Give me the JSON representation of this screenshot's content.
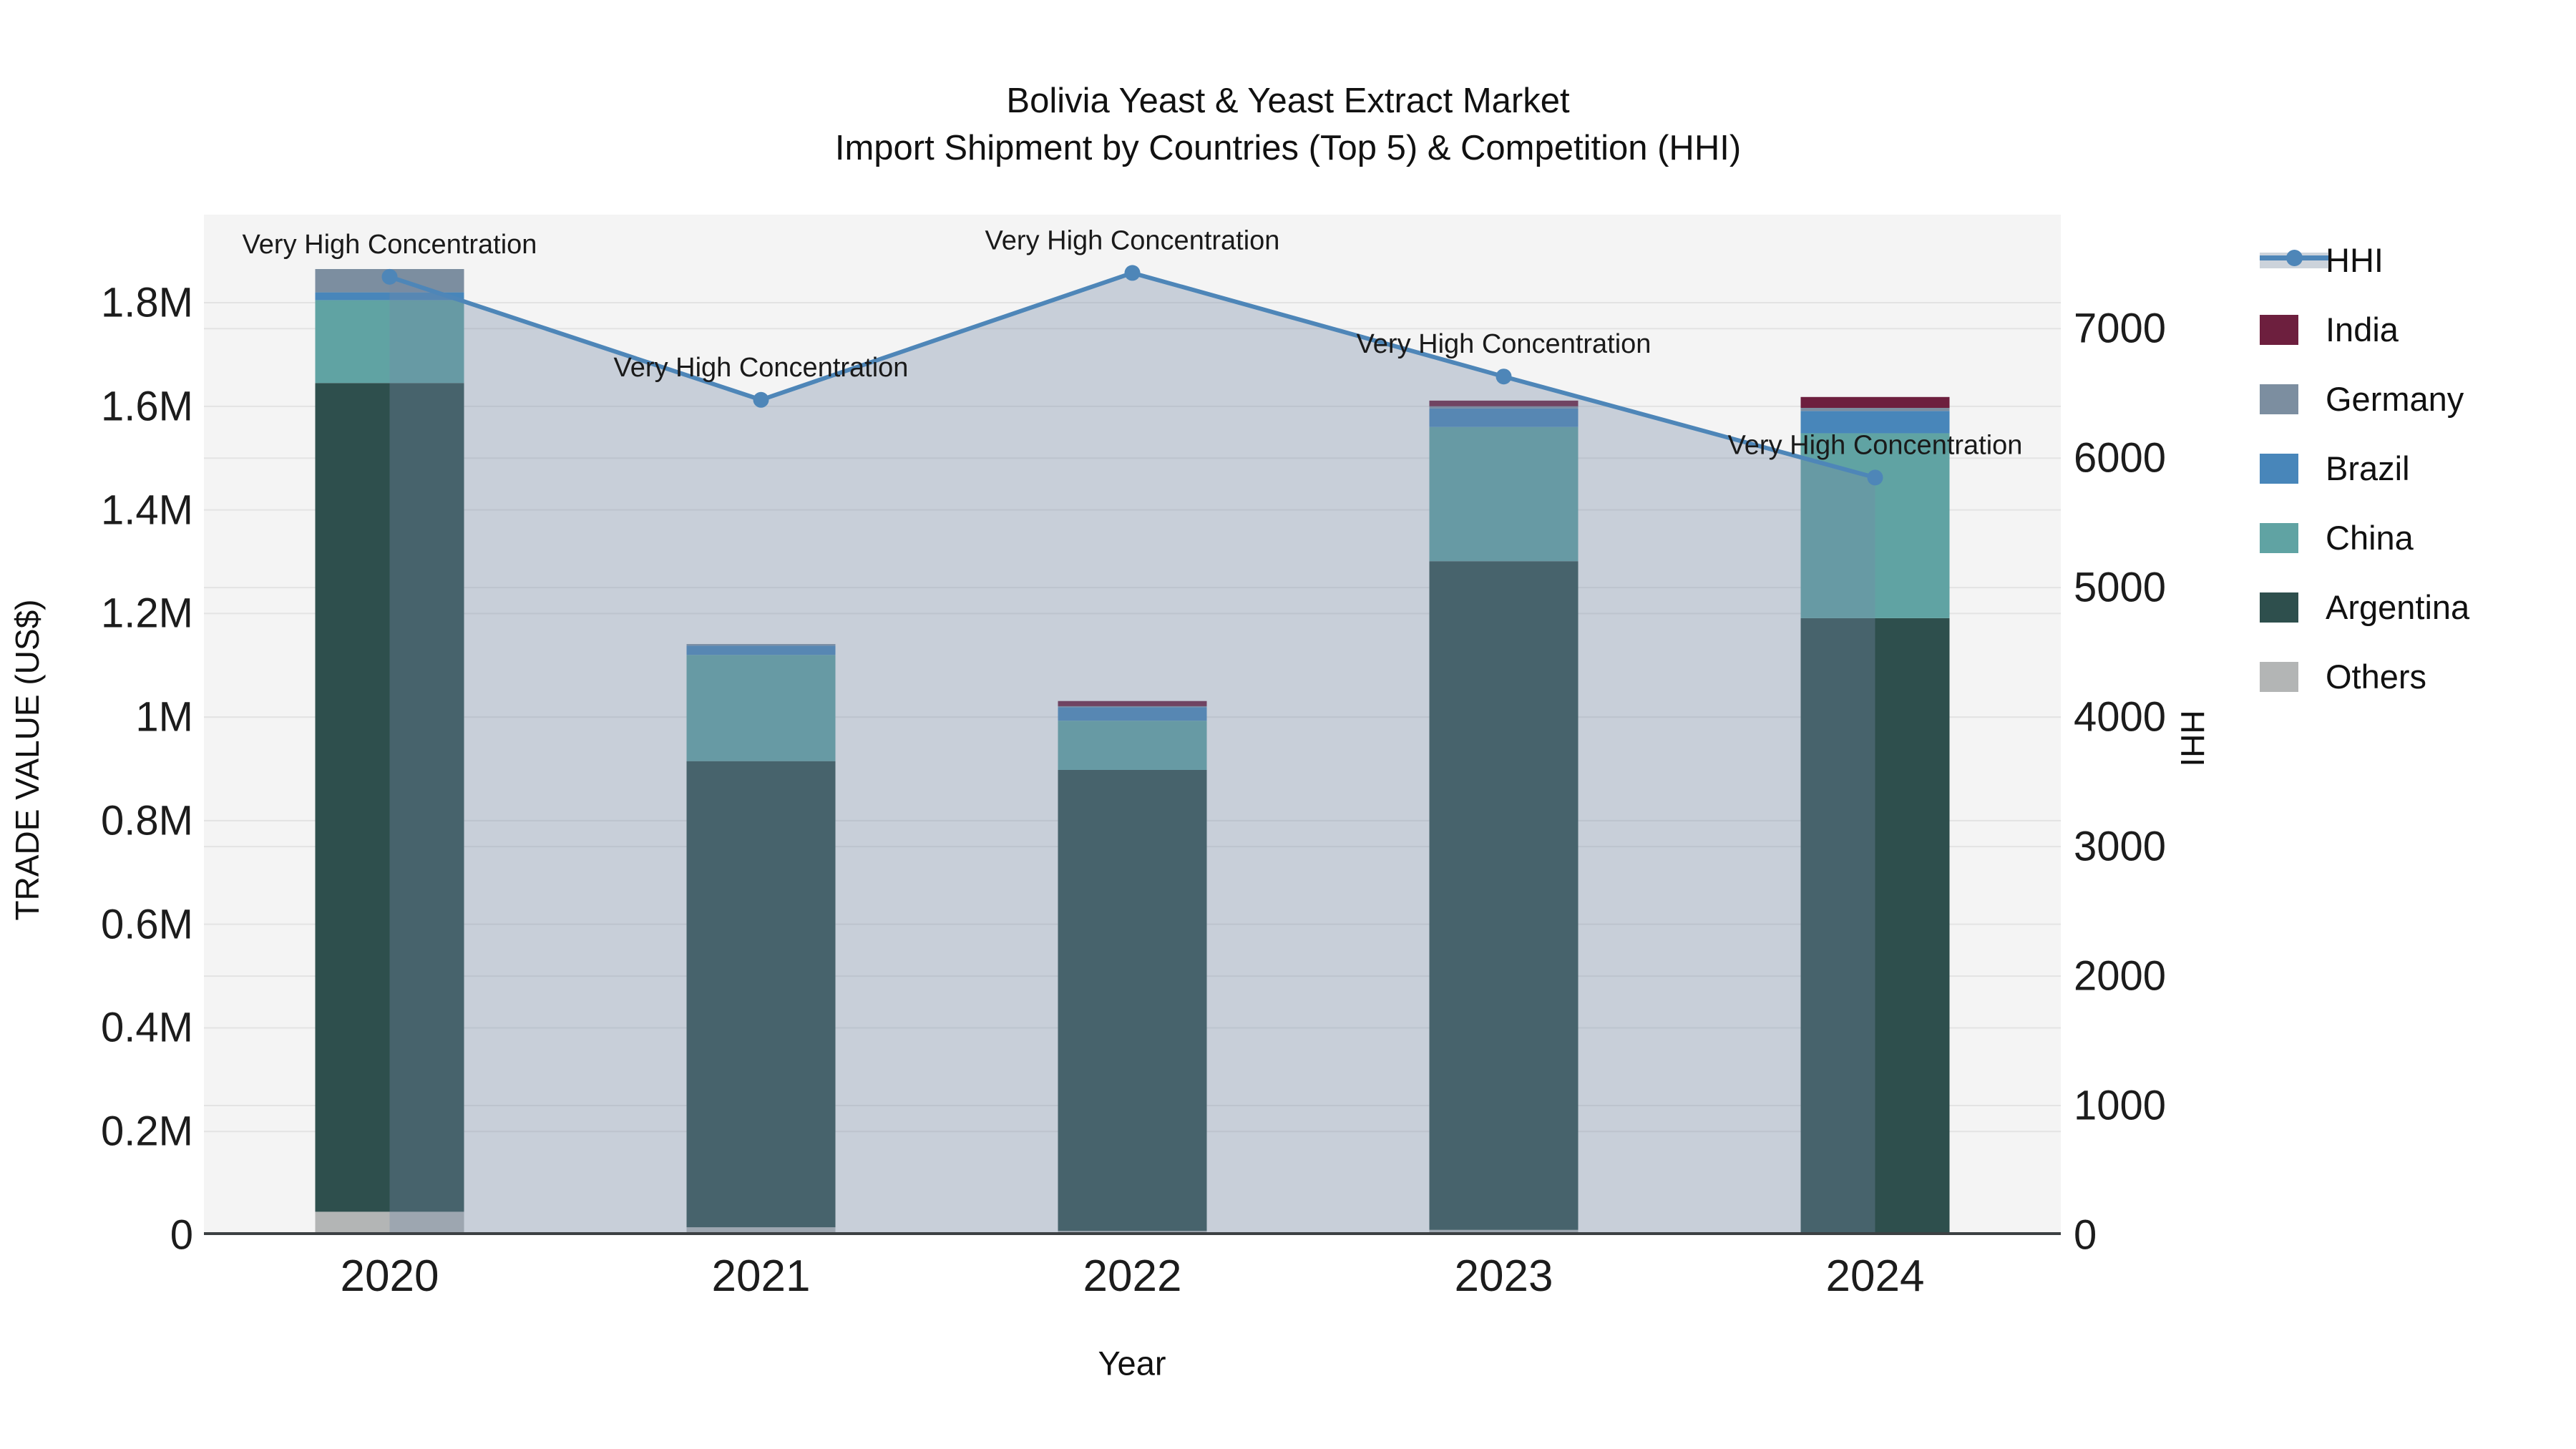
{
  "title": {
    "line1": "Bolivia Yeast & Yeast Extract Market",
    "line2": "Import Shipment by Countries (Top 5) & Competition (HHI)"
  },
  "axes": {
    "x_label": "Year",
    "y_left_label": "TRADE VALUE (US$)",
    "y_right_label": "HHI"
  },
  "legend": {
    "items": [
      {
        "label": "HHI",
        "type": "line",
        "color": "#4e86b8"
      },
      {
        "label": "India",
        "type": "swatch",
        "color": "#6d1f3e"
      },
      {
        "label": "Germany",
        "type": "swatch",
        "color": "#7c8ea0"
      },
      {
        "label": "Brazil",
        "type": "swatch",
        "color": "#4886ba"
      },
      {
        "label": "China",
        "type": "swatch",
        "color": "#60a3a3"
      },
      {
        "label": "Argentina",
        "type": "swatch",
        "color": "#2e4f4d"
      },
      {
        "label": "Others",
        "type": "swatch",
        "color": "#b3b5b5"
      }
    ]
  },
  "chart_data": {
    "type": "bar",
    "subtype": "stacked-bars-with-line",
    "title": "Bolivia Yeast & Yeast Extract Market — Import Shipment by Countries (Top 5) & Competition (HHI)",
    "xlabel": "Year",
    "ylabel_left": "TRADE VALUE (US$)",
    "ylabel_right": "HHI",
    "categories": [
      "2020",
      "2021",
      "2022",
      "2023",
      "2024"
    ],
    "bar_unit": "US$",
    "stack_order_bottom_to_top": [
      "Others",
      "Argentina",
      "China",
      "Brazil",
      "Germany",
      "India"
    ],
    "series": [
      {
        "name": "Others",
        "color": "#b3b5b5",
        "values": [
          45000,
          15000,
          8000,
          10000,
          0
        ]
      },
      {
        "name": "Argentina",
        "color": "#2e4f4d",
        "values": [
          1600000,
          900000,
          890000,
          1291000,
          1191000
        ]
      },
      {
        "name": "China",
        "color": "#60a3a3",
        "values": [
          160000,
          205000,
          95000,
          259000,
          357000
        ]
      },
      {
        "name": "Brazil",
        "color": "#4886ba",
        "values": [
          15000,
          18000,
          26000,
          36000,
          43000
        ]
      },
      {
        "name": "Germany",
        "color": "#7c8ea0",
        "values": [
          45000,
          3000,
          2000,
          4000,
          6000
        ]
      },
      {
        "name": "India",
        "color": "#6d1f3e",
        "values": [
          0,
          0,
          10000,
          11000,
          21000
        ]
      }
    ],
    "bar_totals": [
      1865000,
      1141000,
      1031000,
      1611000,
      1618000
    ],
    "line_series": {
      "name": "HHI",
      "axis": "right",
      "color": "#4e86b8",
      "area_fill": "rgba(118,138,166,0.35)",
      "values": [
        7400,
        6450,
        7430,
        6630,
        5850
      ],
      "annotations": [
        "Very High Concentration",
        "Very High Concentration",
        "Very High Concentration",
        "Very High Concentration",
        "Very High Concentration"
      ]
    },
    "left_axis": {
      "range": [
        0,
        1970000
      ],
      "ticks": [
        {
          "v": 0,
          "label": "0"
        },
        {
          "v": 200000,
          "label": "0.2M"
        },
        {
          "v": 400000,
          "label": "0.4M"
        },
        {
          "v": 600000,
          "label": "0.6M"
        },
        {
          "v": 800000,
          "label": "0.8M"
        },
        {
          "v": 1000000,
          "label": "1M"
        },
        {
          "v": 1200000,
          "label": "1.2M"
        },
        {
          "v": 1400000,
          "label": "1.4M"
        },
        {
          "v": 1600000,
          "label": "1.6M"
        },
        {
          "v": 1800000,
          "label": "1.8M"
        }
      ]
    },
    "right_axis": {
      "range": [
        0,
        7880
      ],
      "ticks": [
        {
          "v": 0,
          "label": "0"
        },
        {
          "v": 1000,
          "label": "1000"
        },
        {
          "v": 2000,
          "label": "2000"
        },
        {
          "v": 3000,
          "label": "3000"
        },
        {
          "v": 4000,
          "label": "4000"
        },
        {
          "v": 5000,
          "label": "5000"
        },
        {
          "v": 6000,
          "label": "6000"
        },
        {
          "v": 7000,
          "label": "7000"
        }
      ]
    },
    "grid": true,
    "legend_position": "right",
    "plot_bg": "#f4f4f4",
    "grid_color": "#e3e3e3",
    "axis_line_color": "#3c4043"
  }
}
